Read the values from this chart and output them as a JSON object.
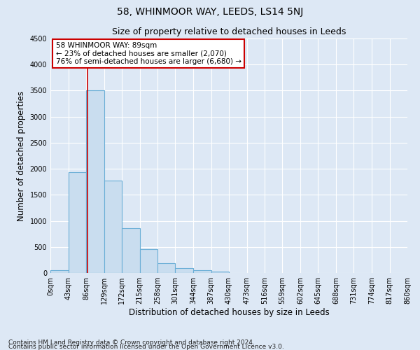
{
  "title": "58, WHINMOOR WAY, LEEDS, LS14 5NJ",
  "subtitle": "Size of property relative to detached houses in Leeds",
  "xlabel": "Distribution of detached houses by size in Leeds",
  "ylabel": "Number of detached properties",
  "bin_edges": [
    0,
    43,
    86,
    129,
    172,
    215,
    258,
    301,
    344,
    387,
    430,
    473,
    516,
    559,
    602,
    645,
    688,
    731,
    774,
    817,
    860
  ],
  "bin_labels": [
    "0sqm",
    "43sqm",
    "86sqm",
    "129sqm",
    "172sqm",
    "215sqm",
    "258sqm",
    "301sqm",
    "344sqm",
    "387sqm",
    "430sqm",
    "473sqm",
    "516sqm",
    "559sqm",
    "602sqm",
    "645sqm",
    "688sqm",
    "731sqm",
    "774sqm",
    "817sqm",
    "860sqm"
  ],
  "bar_heights": [
    50,
    1930,
    3500,
    1775,
    860,
    460,
    185,
    100,
    55,
    30,
    0,
    0,
    0,
    0,
    0,
    0,
    0,
    0,
    0,
    0
  ],
  "bar_color": "#c9ddef",
  "bar_edge_color": "#6aaed6",
  "ylim": [
    0,
    4500
  ],
  "yticks": [
    0,
    500,
    1000,
    1500,
    2000,
    2500,
    3000,
    3500,
    4000,
    4500
  ],
  "property_line_x": 89,
  "property_line_color": "#cc0000",
  "annotation_text": "58 WHINMOOR WAY: 89sqm\n← 23% of detached houses are smaller (2,070)\n76% of semi-detached houses are larger (6,680) →",
  "annotation_box_facecolor": "#ffffff",
  "annotation_box_edgecolor": "#cc0000",
  "footer_line1": "Contains HM Land Registry data © Crown copyright and database right 2024.",
  "footer_line2": "Contains public sector information licensed under the Open Government Licence v3.0.",
  "background_color": "#dde8f5",
  "plot_bg_color": "#dde8f5",
  "title_fontsize": 10,
  "subtitle_fontsize": 9,
  "axis_label_fontsize": 8.5,
  "tick_fontsize": 7,
  "annotation_fontsize": 7.5,
  "footer_fontsize": 6.5
}
